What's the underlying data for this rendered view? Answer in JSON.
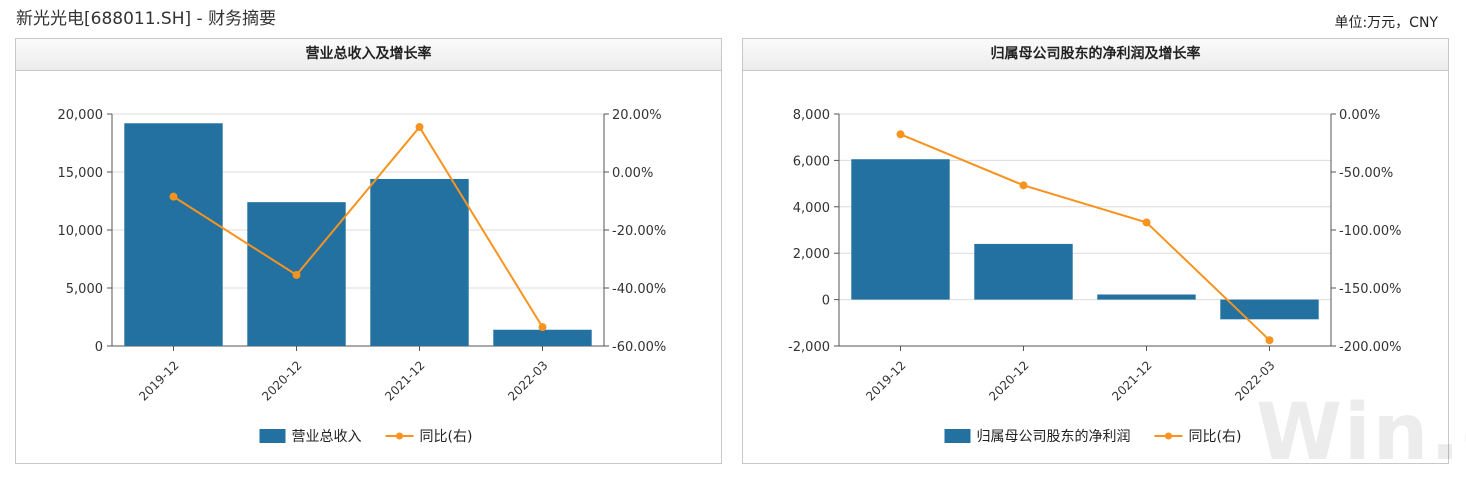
{
  "header": {
    "title": "新光光电[688011.SH] - 财务摘要",
    "unit": "单位:万元，CNY"
  },
  "watermark": "Win.d",
  "colors": {
    "bar": "#2271a1",
    "line": "#f7931e",
    "grid": "#dcdcdc",
    "axis": "#555555"
  },
  "chart_data": [
    {
      "type": "bar",
      "title": "营业总收入及增长率",
      "categories": [
        "2019-12",
        "2020-12",
        "2021-12",
        "2022-03"
      ],
      "series": [
        {
          "name": "营业总收入",
          "type": "bar",
          "axis": "left",
          "values": [
            19200,
            12400,
            14400,
            1400
          ]
        },
        {
          "name": "同比(右)",
          "type": "line",
          "axis": "right",
          "values": [
            -8.5,
            -35.5,
            15.5,
            -53.5
          ]
        }
      ],
      "y_left": {
        "min": 0,
        "max": 20000,
        "ticks": [
          "0",
          "5,000",
          "10,000",
          "15,000",
          "20,000"
        ]
      },
      "y_right": {
        "min": -60,
        "max": 20,
        "ticks": [
          "-60.00%",
          "-40.00%",
          "-20.00%",
          "0.00%",
          "20.00%"
        ]
      },
      "grid": true,
      "legend": "bottom"
    },
    {
      "type": "bar",
      "title": "归属母公司股东的净利润及增长率",
      "categories": [
        "2019-12",
        "2020-12",
        "2021-12",
        "2022-03"
      ],
      "series": [
        {
          "name": "归属母公司股东的净利润",
          "type": "bar",
          "axis": "left",
          "values": [
            6050,
            2400,
            220,
            -850
          ]
        },
        {
          "name": "同比(右)",
          "type": "line",
          "axis": "right",
          "values": [
            -17.5,
            -61.5,
            -93.5,
            -195
          ]
        }
      ],
      "y_left": {
        "min": -2000,
        "max": 8000,
        "ticks": [
          "-2,000",
          "0",
          "2,000",
          "4,000",
          "6,000",
          "8,000"
        ]
      },
      "y_right": {
        "min": -200,
        "max": 0,
        "ticks": [
          "-200.00%",
          "-150.00%",
          "-100.00%",
          "-50.00%",
          "0.00%"
        ]
      },
      "grid": true,
      "legend": "bottom"
    }
  ]
}
